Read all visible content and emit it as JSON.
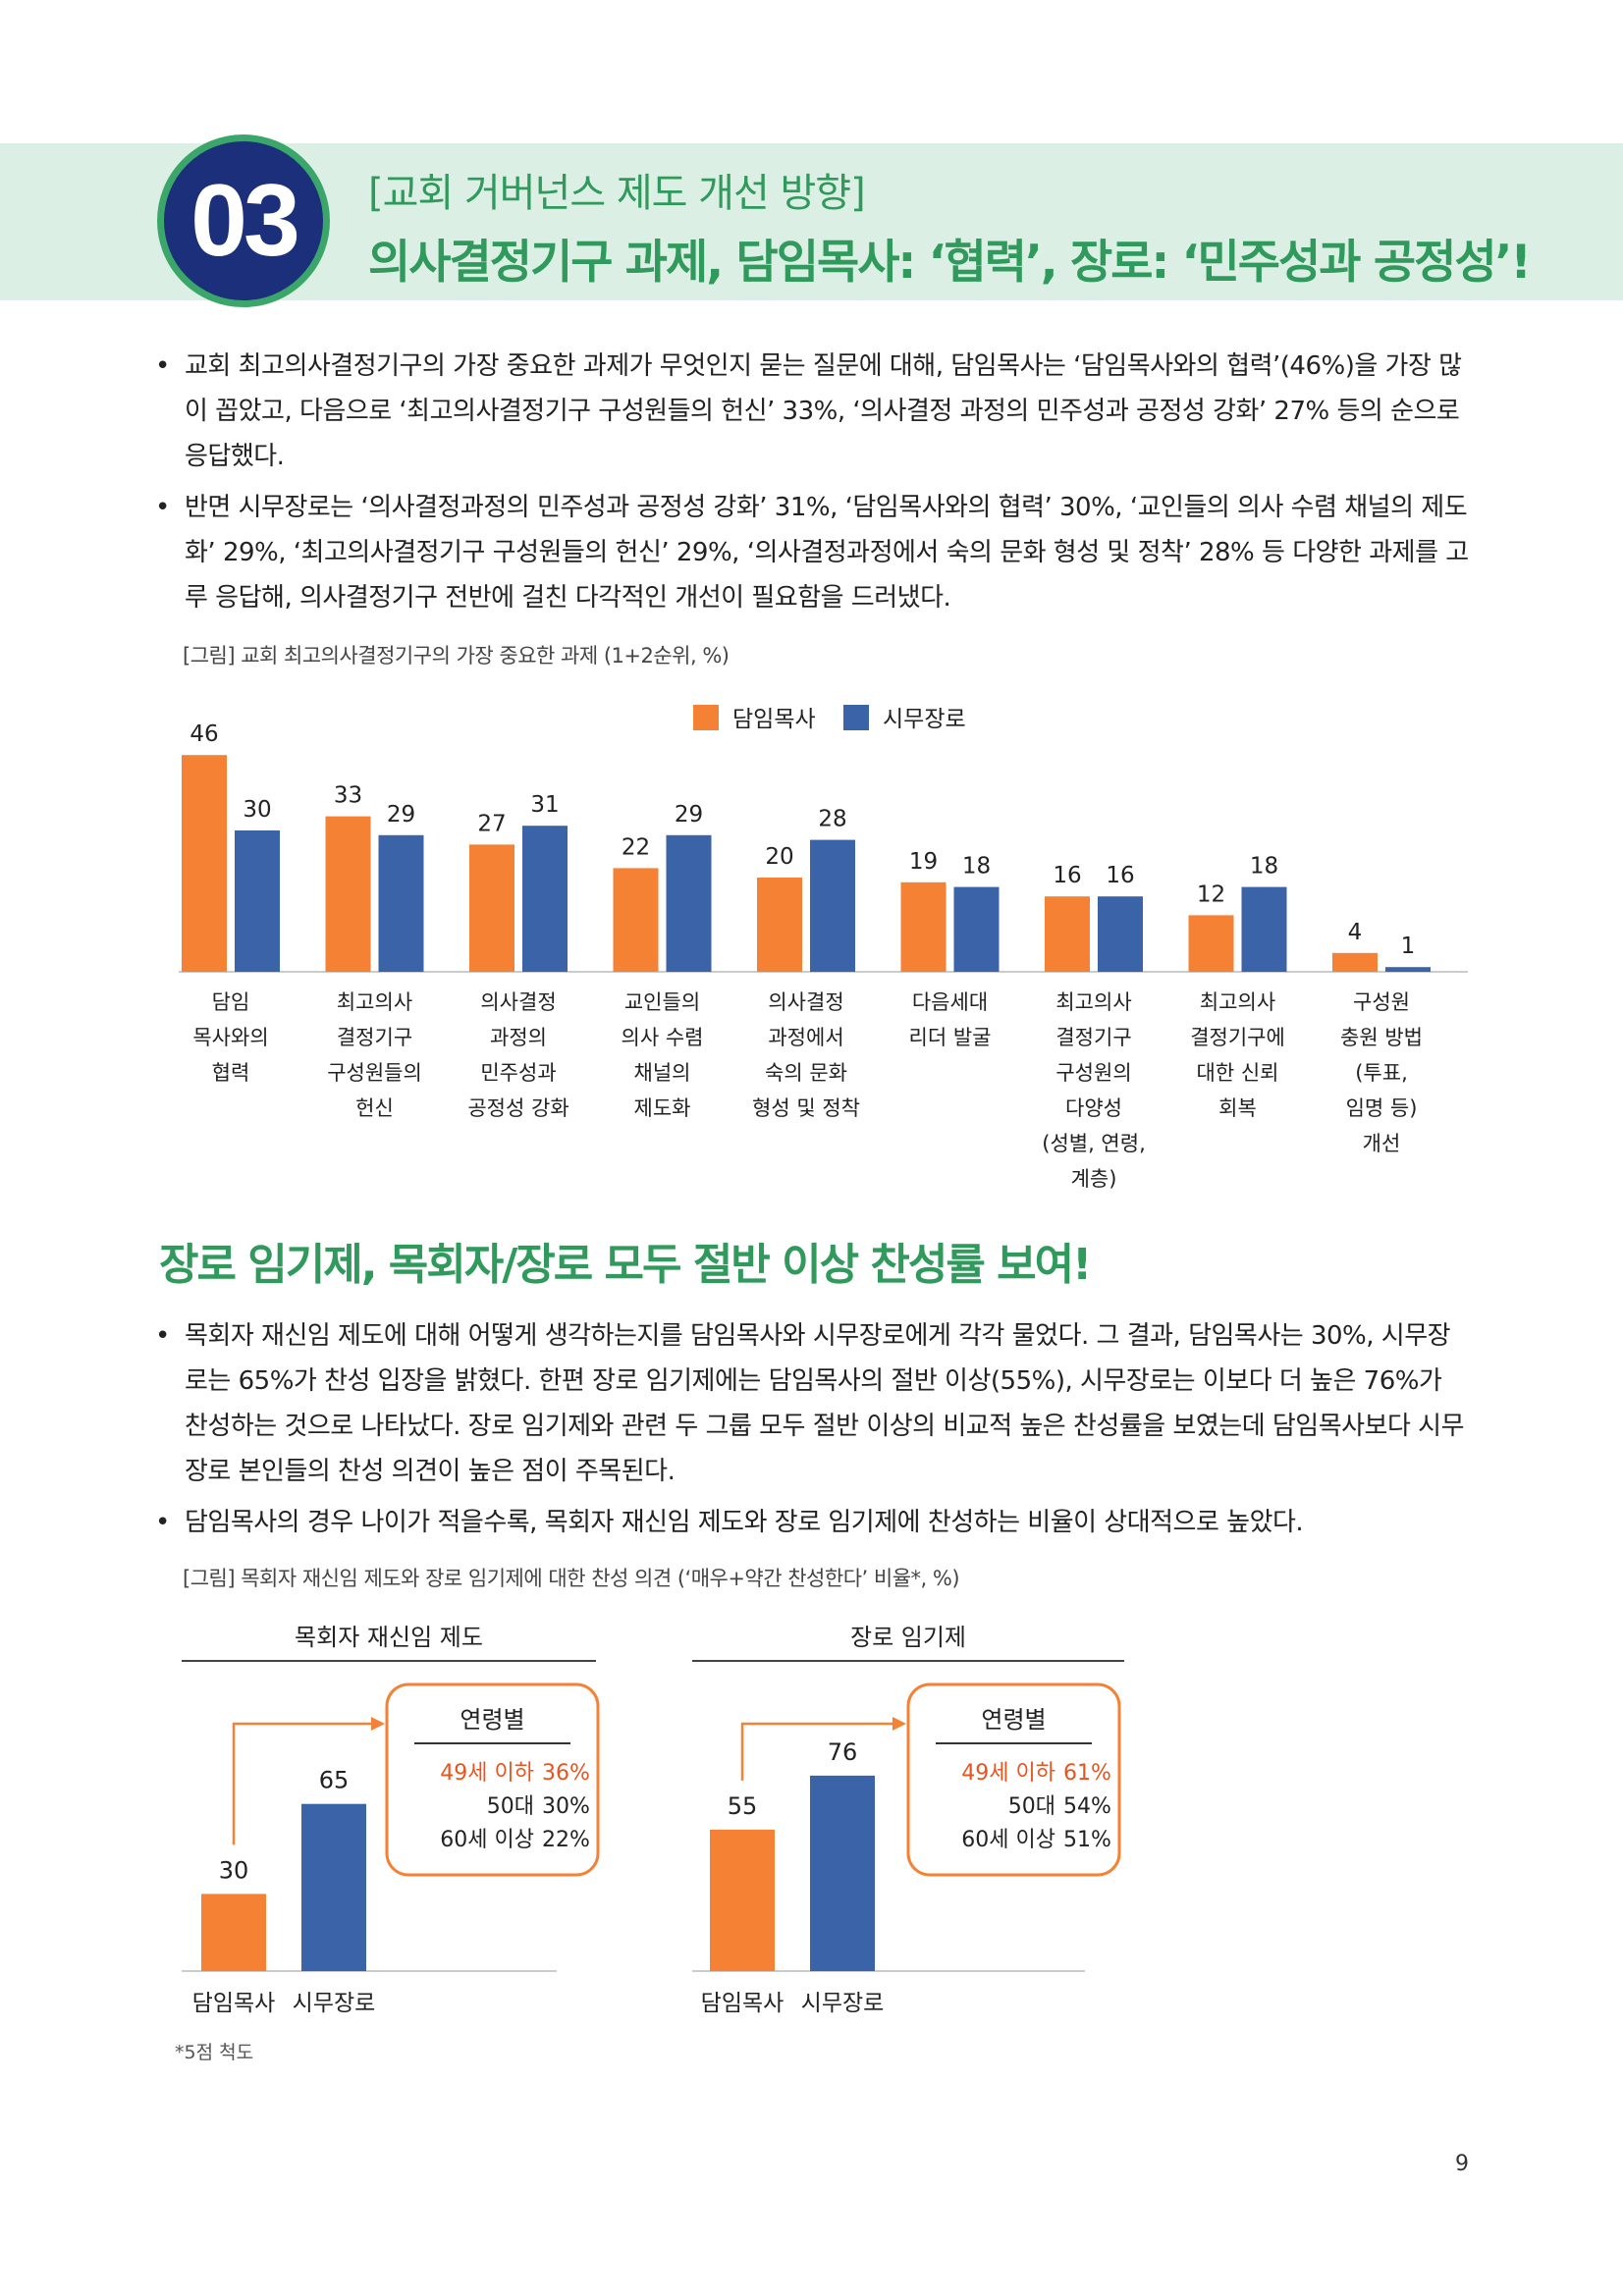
{
  "header": {
    "number": "03",
    "subtitle": "[교회 거버넌스 제도 개선 방향]",
    "title": "의사결정기구 과제, 담임목사: ‘협력’, 장로: ‘민주성과 공정성’!"
  },
  "section1": {
    "bullets": [
      "교회 최고의사결정기구의 가장 중요한 과제가 무엇인지 묻는 질문에 대해, 담임목사는 ‘담임목사와의 협력’(46%)을 가장 많이 꼽았고, 다음으로 ‘최고의사결정기구 구성원들의 헌신’ 33%, ‘의사결정 과정의 민주성과 공정성 강화’ 27% 등의 순으로 응답했다.",
      "반면 시무장로는 ‘의사결정과정의 민주성과 공정성 강화’ 31%, ‘담임목사와의 협력’ 30%, ‘교인들의 의사 수렴 채널의 제도화’ 29%, ‘최고의사결정기구 구성원들의 헌신’ 29%, ‘의사결정과정에서 숙의 문화 형성 및 정착’ 28% 등 다양한 과제를 고루 응답해, 의사결정기구 전반에 걸친 다각적인 개선이 필요함을 드러냈다."
    ],
    "figure_caption": "[그림] 교회 최고의사결정기구의 가장 중요한 과제 (1+2순위, %)"
  },
  "section2": {
    "title": "장로 임기제, 목회자/장로 모두 절반 이상 찬성률 보여!",
    "bullets": [
      "목회자 재신임 제도에 대해 어떻게 생각하는지를 담임목사와 시무장로에게 각각 물었다. 그 결과, 담임목사는 30%, 시무장로는 65%가 찬성 입장을 밝혔다. 한편 장로 임기제에는 담임목사의 절반 이상(55%), 시무장로는 이보다 더 높은 76%가 찬성하는 것으로 나타났다. 장로 임기제와 관련 두 그룹 모두 절반 이상의 비교적 높은 찬성률을 보였는데 담임목사보다 시무장로 본인들의 찬성 의견이 높은 점이 주목된다.",
      "담임목사의 경우 나이가 적을수록, 목회자 재신임 제도와 장로 임기제에 찬성하는 비율이 상대적으로 높았다."
    ],
    "figure_caption": "[그림] 목회자 재신임 제도와 장로 임기제에 대한 찬성 의견 (‘매우+약간 찬성한다’ 비율*, %)"
  },
  "footnote": "*5점 척도",
  "page_number": "9",
  "colors": {
    "orange": "#f58234",
    "blue": "#3b63a8",
    "green": "#2f9a5c",
    "navy": "#1b2f7a"
  },
  "chart_data": [
    {
      "type": "bar",
      "legend_position": "top",
      "series": [
        {
          "name": "담임목사",
          "color": "#f58234",
          "values": [
            46,
            33,
            27,
            22,
            20,
            19,
            16,
            12,
            4
          ]
        },
        {
          "name": "시무장로",
          "color": "#3b63a8",
          "values": [
            30,
            29,
            31,
            29,
            28,
            18,
            16,
            18,
            1
          ]
        }
      ],
      "categories": [
        [
          "담임",
          "목사와의",
          "협력"
        ],
        [
          "최고의사",
          "결정기구",
          "구성원들의",
          "헌신"
        ],
        [
          "의사결정",
          "과정의",
          "민주성과",
          "공정성 강화"
        ],
        [
          "교인들의",
          "의사 수렴",
          "채널의",
          "제도화"
        ],
        [
          "의사결정",
          "과정에서",
          "숙의 문화",
          "형성 및 정착"
        ],
        [
          "다음세대",
          "리더 발굴"
        ],
        [
          "최고의사",
          "결정기구",
          "구성원의",
          "다양성",
          "(성별, 연령,",
          "계층)"
        ],
        [
          "최고의사",
          "결정기구에",
          "대한 신뢰",
          "회복"
        ],
        [
          "구성원",
          "충원 방법",
          "(투표,",
          "임명 등)",
          "개선"
        ]
      ],
      "ylim": [
        0,
        50
      ]
    },
    {
      "type": "bar",
      "title": "목회자 재신임 제도",
      "categories": [
        "담임목사",
        "시무장로"
      ],
      "values": [
        30,
        65
      ],
      "colors": [
        "#f58234",
        "#3b63a8"
      ],
      "ylim": [
        0,
        100
      ],
      "age_box": {
        "title": "연령별",
        "rows": [
          {
            "label": "49세 이하",
            "value": "36%",
            "highlight": true
          },
          {
            "label": "50대",
            "value": "30%",
            "highlight": false
          },
          {
            "label": "60세 이상",
            "value": "22%",
            "highlight": false
          }
        ]
      }
    },
    {
      "type": "bar",
      "title": "장로 임기제",
      "categories": [
        "담임목사",
        "시무장로"
      ],
      "values": [
        55,
        76
      ],
      "colors": [
        "#f58234",
        "#3b63a8"
      ],
      "ylim": [
        0,
        100
      ],
      "age_box": {
        "title": "연령별",
        "rows": [
          {
            "label": "49세 이하",
            "value": "61%",
            "highlight": true
          },
          {
            "label": "50대",
            "value": "54%",
            "highlight": false
          },
          {
            "label": "60세 이상",
            "value": "51%",
            "highlight": false
          }
        ]
      }
    }
  ]
}
